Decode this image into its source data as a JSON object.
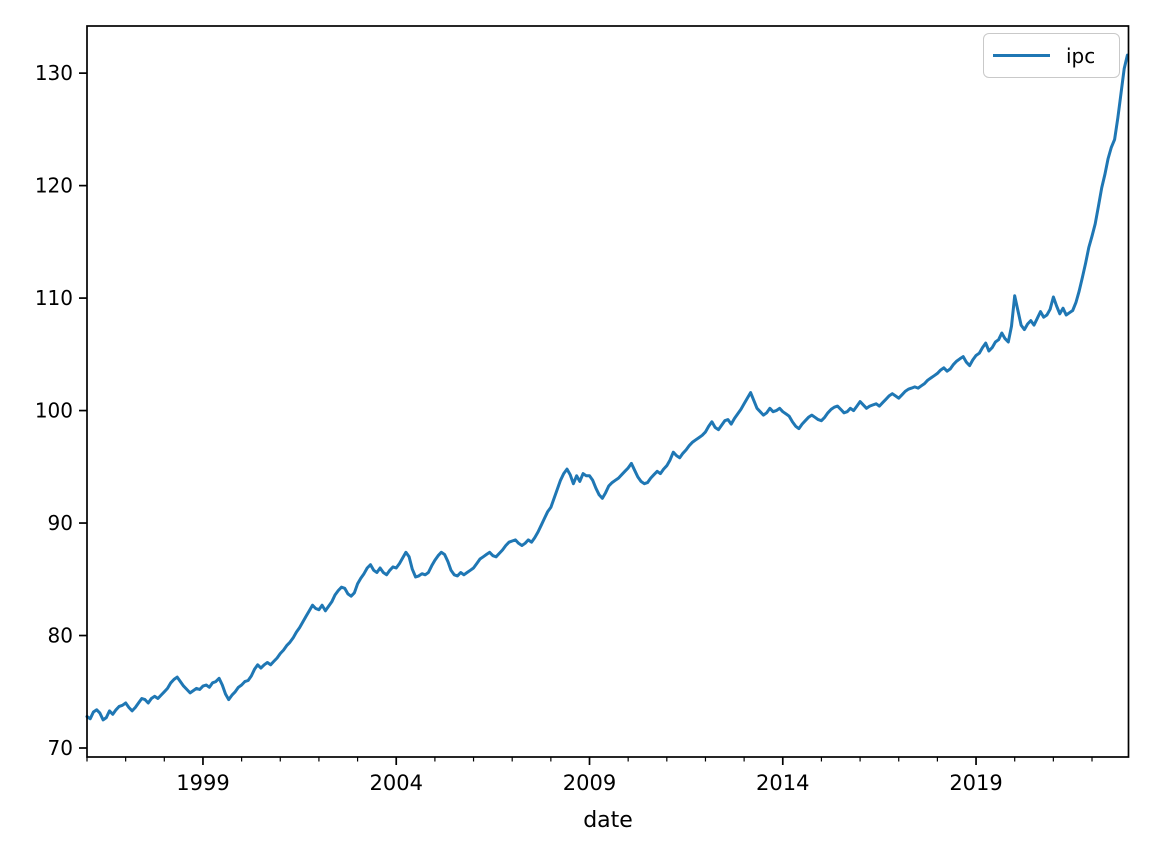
{
  "chart_data": {
    "type": "line",
    "title": "",
    "xlabel": "date",
    "ylabel": "",
    "grid": false,
    "background_color": "#ffffff",
    "legend": {
      "position": "upper right",
      "entries": [
        "ipc"
      ]
    },
    "x_axis": {
      "label": "date",
      "major_ticks": [
        1999,
        2004,
        2009,
        2014,
        2019
      ],
      "minor_tick_interval_years": 1,
      "range": [
        1996.0,
        2022.944
      ]
    },
    "y_axis": {
      "major_ticks": [
        70,
        80,
        90,
        100,
        110,
        120,
        130
      ],
      "range": [
        69.2,
        134.19
      ]
    },
    "series": [
      {
        "name": "ipc",
        "color": "#1f77b4",
        "start_year": 1996,
        "frequency": "monthly",
        "values": [
          72.8,
          72.6,
          73.2,
          73.4,
          73.1,
          72.5,
          72.7,
          73.3,
          73.0,
          73.4,
          73.7,
          73.8,
          74.0,
          73.6,
          73.3,
          73.6,
          74.0,
          74.4,
          74.3,
          74.0,
          74.4,
          74.6,
          74.4,
          74.7,
          75.0,
          75.3,
          75.8,
          76.1,
          76.3,
          75.9,
          75.5,
          75.2,
          74.9,
          75.1,
          75.3,
          75.2,
          75.5,
          75.6,
          75.4,
          75.8,
          75.9,
          76.2,
          75.6,
          74.8,
          74.3,
          74.7,
          75.0,
          75.4,
          75.6,
          75.9,
          76.0,
          76.4,
          77.0,
          77.4,
          77.1,
          77.4,
          77.6,
          77.4,
          77.7,
          78.0,
          78.4,
          78.7,
          79.1,
          79.4,
          79.8,
          80.3,
          80.7,
          81.2,
          81.7,
          82.2,
          82.7,
          82.4,
          82.3,
          82.7,
          82.2,
          82.6,
          83.0,
          83.6,
          84.0,
          84.3,
          84.2,
          83.7,
          83.5,
          83.8,
          84.6,
          85.1,
          85.5,
          86.0,
          86.3,
          85.8,
          85.6,
          86.0,
          85.6,
          85.4,
          85.8,
          86.1,
          86.0,
          86.4,
          86.9,
          87.4,
          87.0,
          85.9,
          85.2,
          85.3,
          85.5,
          85.4,
          85.6,
          86.2,
          86.7,
          87.1,
          87.4,
          87.2,
          86.6,
          85.8,
          85.4,
          85.3,
          85.6,
          85.4,
          85.6,
          85.8,
          86.0,
          86.4,
          86.8,
          87.0,
          87.2,
          87.4,
          87.1,
          87.0,
          87.3,
          87.6,
          88.0,
          88.3,
          88.4,
          88.5,
          88.2,
          88.0,
          88.2,
          88.5,
          88.3,
          88.7,
          89.2,
          89.8,
          90.4,
          91.0,
          91.4,
          92.2,
          93.0,
          93.8,
          94.4,
          94.8,
          94.3,
          93.5,
          94.2,
          93.7,
          94.4,
          94.2,
          94.2,
          93.8,
          93.1,
          92.5,
          92.2,
          92.7,
          93.3,
          93.6,
          93.8,
          94.0,
          94.3,
          94.6,
          94.9,
          95.3,
          94.7,
          94.1,
          93.7,
          93.5,
          93.6,
          94.0,
          94.3,
          94.6,
          94.4,
          94.8,
          95.1,
          95.6,
          96.3,
          96.0,
          95.8,
          96.2,
          96.5,
          96.9,
          97.2,
          97.4,
          97.6,
          97.8,
          98.1,
          98.6,
          99.0,
          98.5,
          98.3,
          98.7,
          99.1,
          99.2,
          98.8,
          99.3,
          99.7,
          100.1,
          100.6,
          101.1,
          101.6,
          100.9,
          100.2,
          99.9,
          99.6,
          99.8,
          100.2,
          99.9,
          100.0,
          100.2,
          99.9,
          99.7,
          99.5,
          99.0,
          98.6,
          98.4,
          98.8,
          99.1,
          99.4,
          99.6,
          99.4,
          99.2,
          99.1,
          99.4,
          99.8,
          100.1,
          100.3,
          100.4,
          100.1,
          99.8,
          99.9,
          100.2,
          100.0,
          100.4,
          100.8,
          100.5,
          100.2,
          100.4,
          100.5,
          100.6,
          100.4,
          100.7,
          101.0,
          101.3,
          101.5,
          101.3,
          101.1,
          101.4,
          101.7,
          101.9,
          102.0,
          102.1,
          102.0,
          102.2,
          102.4,
          102.7,
          102.9,
          103.1,
          103.3,
          103.6,
          103.8,
          103.5,
          103.7,
          104.1,
          104.4,
          104.6,
          104.8,
          104.3,
          104.0,
          104.5,
          104.9,
          105.1,
          105.6,
          106.0,
          105.3,
          105.6,
          106.1,
          106.3,
          106.9,
          106.4,
          106.1,
          107.5,
          110.2,
          108.9,
          107.6,
          107.2,
          107.7,
          108.0,
          107.6,
          108.2,
          108.8,
          108.3,
          108.5,
          109.0,
          110.1,
          109.3,
          108.6,
          109.1,
          108.5,
          108.7,
          108.9,
          109.6,
          110.6,
          111.8,
          113.1,
          114.5,
          115.5,
          116.6,
          118.2,
          119.8,
          121.0,
          122.4,
          123.4,
          124.1,
          126.0,
          128.2,
          130.4,
          131.6
        ]
      }
    ]
  }
}
